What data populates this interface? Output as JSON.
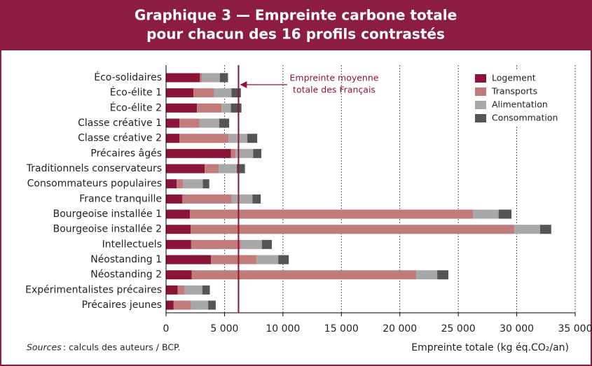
{
  "chart_data": {
    "type": "stacked_barh",
    "title": [
      "Graphique 3 — Empreinte carbone totale",
      "pour chacun des 16 profils contrastés"
    ],
    "categories": [
      "Éco-solidaires",
      "Éco-élite 1",
      "Éco-élite 2",
      "Classe créative 1",
      "Classe créative 2",
      "Précaires âgés",
      "Traditionnels conservateurs",
      "Consommateurs populaires",
      "France tranquille",
      "Bourgeoise installée 1",
      "Bourgeoise installée 2",
      "Intellectuels",
      "Néostanding 1",
      "Néostanding 2",
      "Expérimentalistes précaires",
      "Précaires jeunes"
    ],
    "series": [
      {
        "name": "Logement",
        "color": "#8b1538",
        "values": [
          2900,
          2350,
          2650,
          1150,
          1150,
          5550,
          3300,
          900,
          1400,
          2050,
          2100,
          2150,
          3850,
          2200,
          1000,
          650
        ]
      },
      {
        "name": "Transports",
        "color": "#c27b7b",
        "values": [
          200,
          1750,
          2100,
          1700,
          4200,
          400,
          1200,
          550,
          4200,
          24200,
          27700,
          4250,
          3900,
          19200,
          600,
          1500
        ]
      },
      {
        "name": "Alimentation",
        "color": "#a8a8a8",
        "values": [
          1500,
          1500,
          800,
          1700,
          1600,
          1500,
          1550,
          1700,
          1800,
          2200,
          2200,
          1800,
          1850,
          1800,
          1500,
          1450
        ]
      },
      {
        "name": "Consommation",
        "color": "#555555",
        "values": [
          700,
          800,
          900,
          850,
          850,
          700,
          700,
          550,
          700,
          1100,
          950,
          850,
          900,
          950,
          650,
          650
        ]
      }
    ],
    "xlim": [
      0,
      35000
    ],
    "xticks": [
      0,
      {
        "value": 5000,
        "label": "5 000"
      },
      {
        "value": 10000,
        "label": "10 000"
      },
      {
        "value": 15000,
        "label": "15 000"
      },
      {
        "value": 20000,
        "label": "20 000"
      },
      {
        "value": 25000,
        "label": "25 000"
      },
      {
        "value": 30000,
        "label": "30 000"
      },
      {
        "value": 35000,
        "label": "35 000"
      }
    ],
    "grid": true,
    "xlabel": "Empreinte totale (kg éq.CO₂/an)",
    "mean_value": 6200,
    "mean_color": "#8b1538",
    "annotation": [
      "Empreinte moyenne",
      "totale des Français"
    ],
    "legend": "upper right",
    "source": [
      "Sources",
      ": calculs des auteurs / BCP."
    ]
  }
}
